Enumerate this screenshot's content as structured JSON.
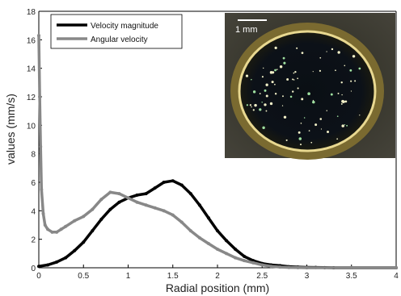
{
  "chart_data": {
    "type": "line",
    "title": "",
    "xlabel": "Radial position (mm)",
    "ylabel": "values (mm/s)",
    "xlim": [
      0,
      4
    ],
    "ylim": [
      0,
      18
    ],
    "xticks": [
      "0",
      "0.5",
      "1",
      "1.5",
      "2",
      "2.5",
      "3",
      "3.5",
      "4"
    ],
    "yticks": [
      "0",
      "2",
      "4",
      "6",
      "8",
      "10",
      "12",
      "14",
      "16",
      "18"
    ],
    "grid": false,
    "legend_position": "top-left",
    "series": [
      {
        "name": "Velocity magnitude",
        "color": "#000000",
        "x": [
          0,
          0.1,
          0.2,
          0.3,
          0.4,
          0.5,
          0.6,
          0.7,
          0.8,
          0.9,
          1.0,
          1.1,
          1.2,
          1.3,
          1.4,
          1.5,
          1.6,
          1.7,
          1.8,
          1.9,
          2.0,
          2.1,
          2.2,
          2.3,
          2.4,
          2.5,
          2.6,
          2.7,
          2.8,
          2.9,
          3.0,
          3.1,
          3.2,
          3.3,
          3.5,
          4.0
        ],
        "y": [
          0.1,
          0.2,
          0.4,
          0.7,
          1.2,
          1.8,
          2.6,
          3.4,
          4.1,
          4.6,
          4.9,
          5.1,
          5.2,
          5.6,
          6.0,
          6.1,
          5.8,
          5.2,
          4.4,
          3.5,
          2.6,
          1.9,
          1.3,
          0.8,
          0.5,
          0.3,
          0.2,
          0.15,
          0.08,
          0.05,
          0.03,
          0.02,
          0.01,
          0,
          0,
          0
        ]
      },
      {
        "name": "Angular velocity",
        "color": "#888888",
        "x": [
          0,
          0.01,
          0.02,
          0.03,
          0.05,
          0.07,
          0.1,
          0.15,
          0.2,
          0.25,
          0.3,
          0.4,
          0.5,
          0.6,
          0.7,
          0.8,
          0.9,
          1.0,
          1.1,
          1.2,
          1.3,
          1.4,
          1.5,
          1.6,
          1.7,
          1.8,
          1.9,
          2.0,
          2.1,
          2.2,
          2.3,
          2.4,
          2.5,
          2.6,
          2.7,
          2.8,
          2.9,
          3.0,
          3.5,
          4.0
        ],
        "y": [
          16.3,
          12.0,
          8.5,
          5.5,
          3.8,
          3.0,
          2.7,
          2.5,
          2.5,
          2.7,
          2.9,
          3.3,
          3.6,
          4.1,
          4.8,
          5.3,
          5.2,
          4.9,
          4.6,
          4.4,
          4.2,
          4.0,
          3.7,
          3.2,
          2.6,
          2.1,
          1.7,
          1.3,
          1.0,
          0.7,
          0.5,
          0.35,
          0.2,
          0.1,
          0.05,
          0.02,
          0.01,
          0,
          0,
          0
        ]
      }
    ]
  },
  "inset": {
    "scale_bar_label": "1 mm"
  }
}
